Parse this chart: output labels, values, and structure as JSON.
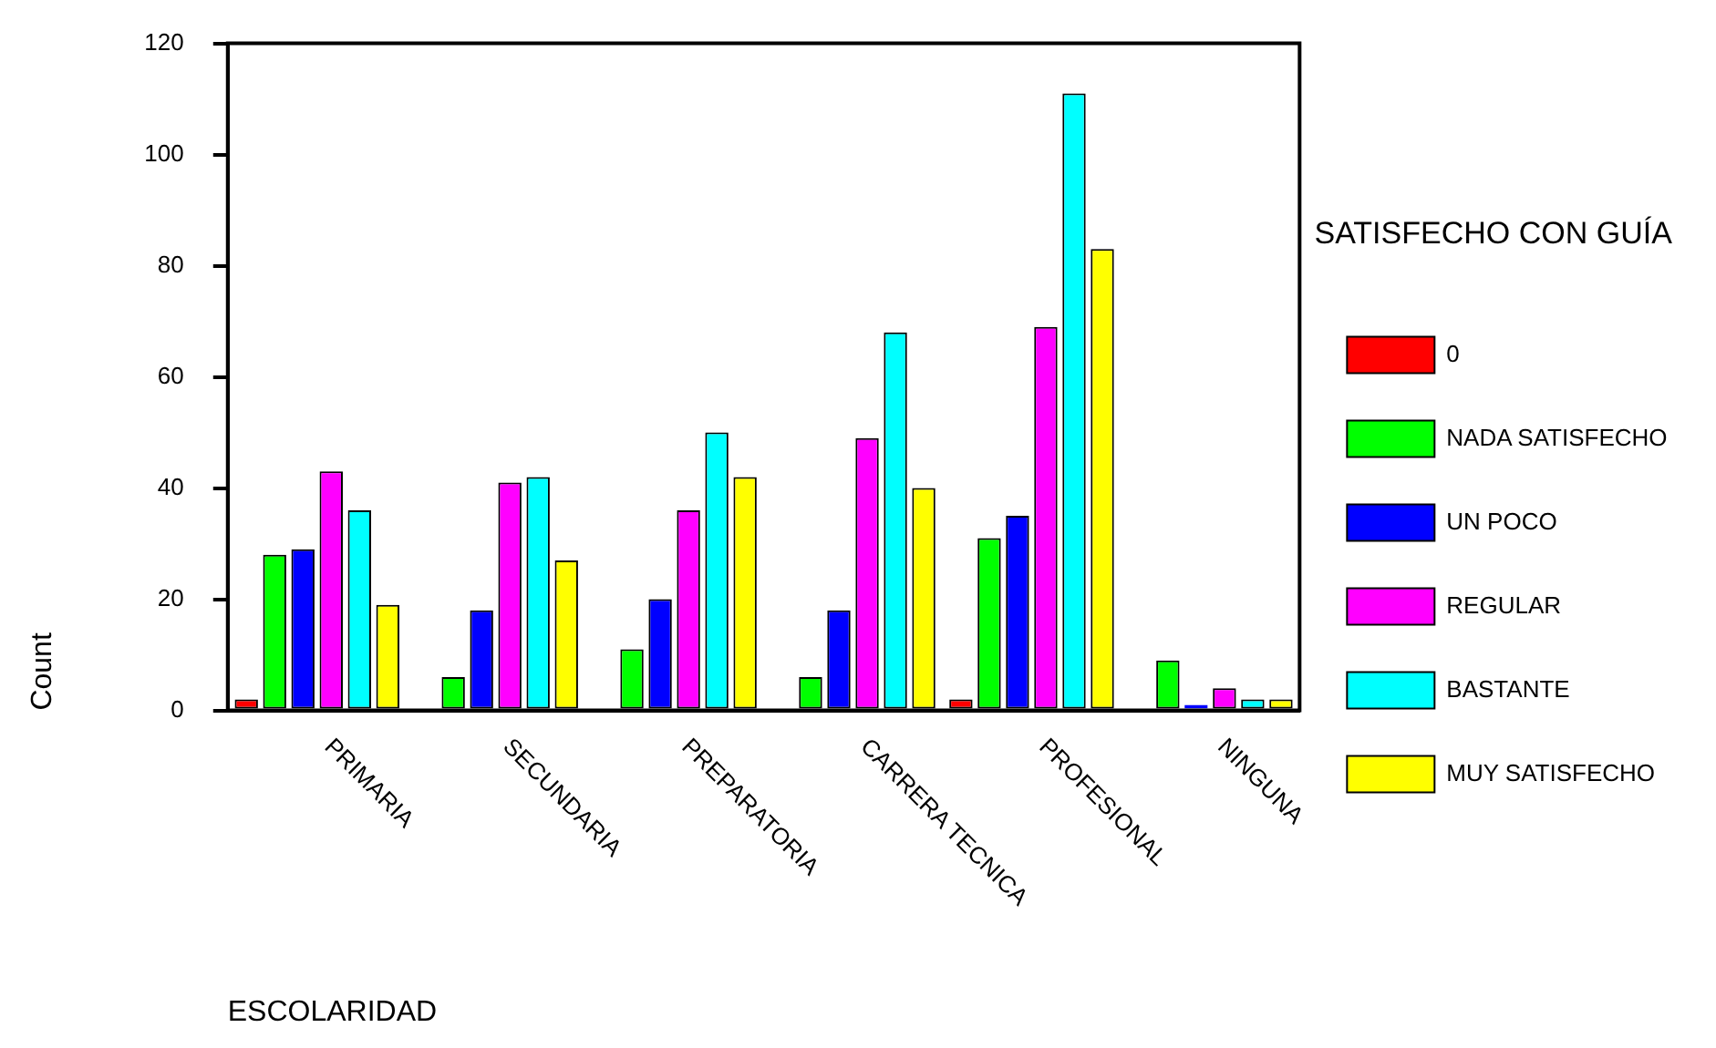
{
  "chart_data": {
    "type": "bar",
    "xlabel": "ESCOLARIDAD",
    "ylabel": "Count",
    "legend_title": "SATISFECHO CON GUÍA",
    "legend": "right",
    "categories": [
      "PRIMARIA",
      "SECUNDARIA",
      "PREPARATORIA",
      "CARRERA TECNICA",
      "PROFESIONAL",
      "NINGUNA"
    ],
    "ylim": [
      0,
      120
    ],
    "yticks": [
      0,
      20,
      40,
      60,
      80,
      100,
      120
    ],
    "grid": false,
    "series": [
      {
        "name": "0",
        "color": "#ff0000",
        "values": [
          2,
          0,
          0,
          0,
          2,
          0
        ]
      },
      {
        "name": "NADA SATISFECHO",
        "color": "#00ff00",
        "values": [
          28,
          6,
          11,
          6,
          31,
          9
        ]
      },
      {
        "name": "UN POCO",
        "color": "#0000ff",
        "values": [
          29,
          18,
          20,
          18,
          35,
          1
        ]
      },
      {
        "name": "REGULAR",
        "color": "#ff00ff",
        "values": [
          43,
          41,
          36,
          49,
          69,
          4
        ]
      },
      {
        "name": "BASTANTE",
        "color": "#00ffff",
        "values": [
          36,
          42,
          50,
          68,
          111,
          2
        ]
      },
      {
        "name": "MUY SATISFECHO",
        "color": "#ffff00",
        "values": [
          19,
          27,
          42,
          40,
          83,
          2
        ]
      }
    ]
  }
}
